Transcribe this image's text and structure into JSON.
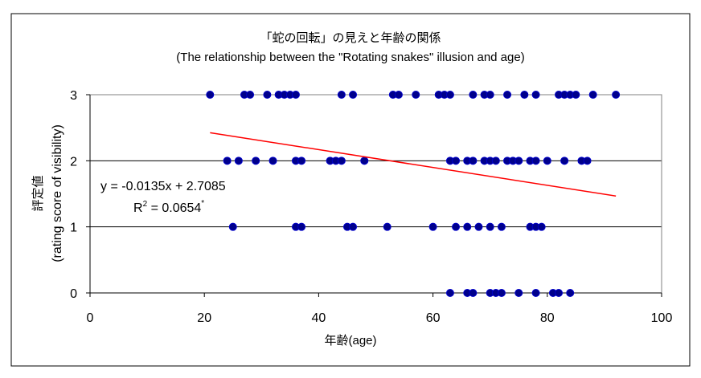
{
  "chart_data": {
    "type": "scatter",
    "title": "「蛇の回転」の見えと年齢の関係",
    "subtitle": "(The relationship between the \"Rotating snakes\" illusion and age)",
    "xlabel": "年齢(age)",
    "ylabel": "評定値",
    "ylabel2": "(rating score of visibility)",
    "xlim": [
      0,
      100
    ],
    "ylim": [
      0,
      3
    ],
    "xticks": [
      "0",
      "20",
      "40",
      "60",
      "80",
      "100"
    ],
    "yticks": [
      "0",
      "1",
      "2",
      "3"
    ],
    "grid": "horizontal",
    "series": [
      {
        "name": "rating",
        "color": "#00008B",
        "points": [
          [
            21,
            3
          ],
          [
            27,
            3
          ],
          [
            28,
            3
          ],
          [
            31,
            3
          ],
          [
            33,
            3
          ],
          [
            34,
            3
          ],
          [
            35,
            3
          ],
          [
            36,
            3
          ],
          [
            44,
            3
          ],
          [
            46,
            3
          ],
          [
            53,
            3
          ],
          [
            54,
            3
          ],
          [
            57,
            3
          ],
          [
            61,
            3
          ],
          [
            62,
            3
          ],
          [
            63,
            3
          ],
          [
            67,
            3
          ],
          [
            69,
            3
          ],
          [
            70,
            3
          ],
          [
            73,
            3
          ],
          [
            76,
            3
          ],
          [
            78,
            3
          ],
          [
            82,
            3
          ],
          [
            83,
            3
          ],
          [
            84,
            3
          ],
          [
            85,
            3
          ],
          [
            88,
            3
          ],
          [
            92,
            3
          ],
          [
            24,
            2
          ],
          [
            26,
            2
          ],
          [
            29,
            2
          ],
          [
            32,
            2
          ],
          [
            36,
            2
          ],
          [
            37,
            2
          ],
          [
            42,
            2
          ],
          [
            43,
            2
          ],
          [
            44,
            2
          ],
          [
            48,
            2
          ],
          [
            63,
            2
          ],
          [
            64,
            2
          ],
          [
            66,
            2
          ],
          [
            67,
            2
          ],
          [
            69,
            2
          ],
          [
            70,
            2
          ],
          [
            71,
            2
          ],
          [
            73,
            2
          ],
          [
            74,
            2
          ],
          [
            75,
            2
          ],
          [
            77,
            2
          ],
          [
            78,
            2
          ],
          [
            80,
            2
          ],
          [
            83,
            2
          ],
          [
            86,
            2
          ],
          [
            87,
            2
          ],
          [
            25,
            1
          ],
          [
            36,
            1
          ],
          [
            37,
            1
          ],
          [
            45,
            1
          ],
          [
            46,
            1
          ],
          [
            52,
            1
          ],
          [
            60,
            1
          ],
          [
            64,
            1
          ],
          [
            66,
            1
          ],
          [
            68,
            1
          ],
          [
            70,
            1
          ],
          [
            72,
            1
          ],
          [
            77,
            1
          ],
          [
            78,
            1
          ],
          [
            79,
            1
          ],
          [
            63,
            0
          ],
          [
            66,
            0
          ],
          [
            67,
            0
          ],
          [
            70,
            0
          ],
          [
            71,
            0
          ],
          [
            72,
            0
          ],
          [
            75,
            0
          ],
          [
            78,
            0
          ],
          [
            81,
            0
          ],
          [
            82,
            0
          ],
          [
            84,
            0
          ]
        ]
      }
    ],
    "trendline": {
      "slope": -0.0135,
      "intercept": 2.7085,
      "x_range": [
        21,
        92
      ],
      "color": "#FF0000"
    },
    "annotations": {
      "equation": "y = -0.0135x + 2.7085",
      "r2_label": "R",
      "r2_sup": "2",
      "r2_value": " = 0.0654",
      "r2_star": "*"
    }
  }
}
